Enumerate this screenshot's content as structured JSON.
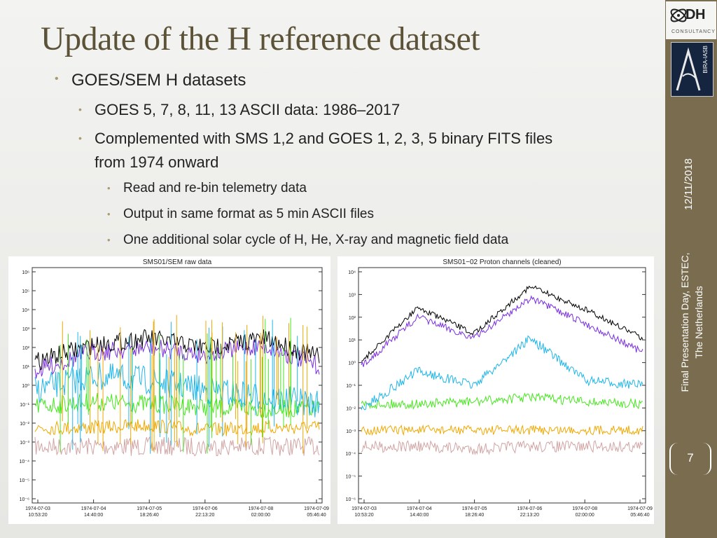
{
  "title": "Update of the H reference dataset",
  "bullets": {
    "l1": "GOES/SEM H datasets",
    "l2a": "GOES 5, 7, 8, 11, 13 ASCII data: 1986–2017",
    "l2b_line1": "Complemented with SMS 1,2 and GOES 1, 2, 3, 5 binary FITS files",
    "l2b_line2": "from 1974 onward",
    "l3a": "Read and re-bin telemetry data",
    "l3b": "Output in same format as 5 min ASCII files",
    "l3c": "One additional solar cycle of H, He, X-ray and magnetic field data"
  },
  "sidebar": {
    "date": "12/11/2018",
    "footer_line1": "Final Presentation Day, ESTEC,",
    "footer_line2": "The Netherlands",
    "page_number": "7",
    "logo_dh": "DH",
    "logo_consultancy": "CONSULTANCY",
    "logo_bira": "BIRA-IASB"
  },
  "colors": {
    "sidebar": "#7a6c4e",
    "title": "#5c5237",
    "bullet": "#a89b6c",
    "series": [
      "#000000",
      "#7a2ee0",
      "#21b6e8",
      "#47e61f",
      "#f0a800",
      "#d2a4a4"
    ]
  },
  "chart_data": [
    {
      "type": "line",
      "title": "SMS01/SEM raw data",
      "yscale": "log",
      "yticks": [
        "10⁶",
        "10⁵",
        "10⁴",
        "10³",
        "10²",
        "10¹",
        "10⁰",
        "10⁻¹",
        "10⁻²",
        "10⁻³",
        "10⁻⁴",
        "10⁻⁵",
        "10⁻⁶"
      ],
      "xticks": [
        {
          "d": "1974-07-03",
          "t": "10:53:20"
        },
        {
          "d": "1974-07-04",
          "t": "14:40:00"
        },
        {
          "d": "1974-07-05",
          "t": "18:26:40"
        },
        {
          "d": "1974-07-06",
          "t": "22:13:20"
        },
        {
          "d": "1974-07-08",
          "t": "02:00:00"
        },
        {
          "d": "1974-07-09",
          "t": "05:46:40"
        }
      ]
    },
    {
      "type": "line",
      "title": "SMS01−02 Proton channels (cleaned)",
      "yscale": "log",
      "yticks": [
        "10⁴",
        "10³",
        "10²",
        "10¹",
        "10⁰",
        "10⁻¹",
        "10⁻²",
        "10⁻³",
        "10⁻⁴",
        "10⁻⁵",
        "10⁻⁶"
      ],
      "xticks": [
        {
          "d": "1974-07-03",
          "t": "10:53:20"
        },
        {
          "d": "1974-07-04",
          "t": "14:40:00"
        },
        {
          "d": "1974-07-05",
          "t": "18:26:40"
        },
        {
          "d": "1974-07-06",
          "t": "22:13:20"
        },
        {
          "d": "1974-07-08",
          "t": "02:00:00"
        },
        {
          "d": "1974-07-09",
          "t": "05:46:40"
        }
      ]
    }
  ]
}
